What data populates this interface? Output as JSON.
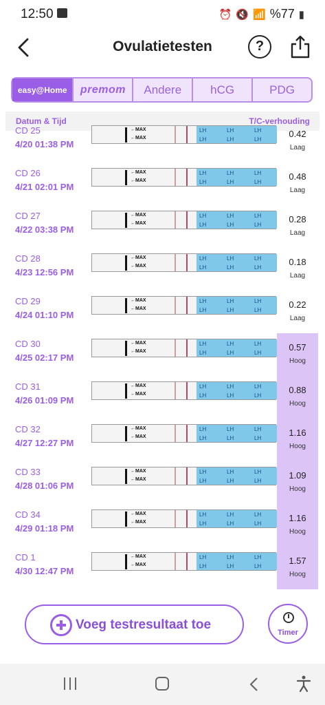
{
  "status_bar": {
    "time": "12:50",
    "battery": "%77"
  },
  "header": {
    "title": "Ovulatietesten",
    "help_label": "?"
  },
  "brand_tabs": [
    {
      "label": "easy@Home",
      "active": true
    },
    {
      "label": "premom",
      "active": false
    },
    {
      "label": "Andere",
      "active": false
    },
    {
      "label": "hCG",
      "active": false
    },
    {
      "label": "PDG",
      "active": false
    }
  ],
  "columns": {
    "left": "Datum & Tijd",
    "right": "T/C-verhouding"
  },
  "strip_text": {
    "max": "←MAX",
    "lh": "LH"
  },
  "rows": [
    {
      "cd": "CD 25",
      "datetime": "4/20  01:38 PM",
      "ratio": "0.42",
      "level": "Laag",
      "high": false
    },
    {
      "cd": "CD 26",
      "datetime": "4/21  02:01 PM",
      "ratio": "0.48",
      "level": "Laag",
      "high": false
    },
    {
      "cd": "CD 27",
      "datetime": "4/22  03:38 PM",
      "ratio": "0.28",
      "level": "Laag",
      "high": false
    },
    {
      "cd": "CD 28",
      "datetime": "4/23  12:56 PM",
      "ratio": "0.18",
      "level": "Laag",
      "high": false
    },
    {
      "cd": "CD 29",
      "datetime": "4/24  01:10 PM",
      "ratio": "0.22",
      "level": "Laag",
      "high": false
    },
    {
      "cd": "CD 30",
      "datetime": "4/25  02:17 PM",
      "ratio": "0.57",
      "level": "Hoog",
      "high": true
    },
    {
      "cd": "CD 31",
      "datetime": "4/26  01:09 PM",
      "ratio": "0.88",
      "level": "Hoog",
      "high": true
    },
    {
      "cd": "CD 32",
      "datetime": "4/27  12:27 PM",
      "ratio": "1.16",
      "level": "Hoog",
      "high": true
    },
    {
      "cd": "CD 33",
      "datetime": "4/28  01:06 PM",
      "ratio": "1.09",
      "level": "Hoog",
      "high": true
    },
    {
      "cd": "CD 34",
      "datetime": "4/29  01:18 PM",
      "ratio": "1.16",
      "level": "Hoog",
      "high": true
    },
    {
      "cd": "CD 1",
      "datetime": "4/30  12:47 PM",
      "ratio": "1.57",
      "level": "Hoog",
      "high": true
    }
  ],
  "actions": {
    "add_label": "Voeg testresultaat toe",
    "timer_label": "Timer"
  },
  "colors": {
    "accent": "#9a5ee6",
    "high_bg": "#dcc5f6",
    "strip_blue": "#7fc8ea"
  }
}
